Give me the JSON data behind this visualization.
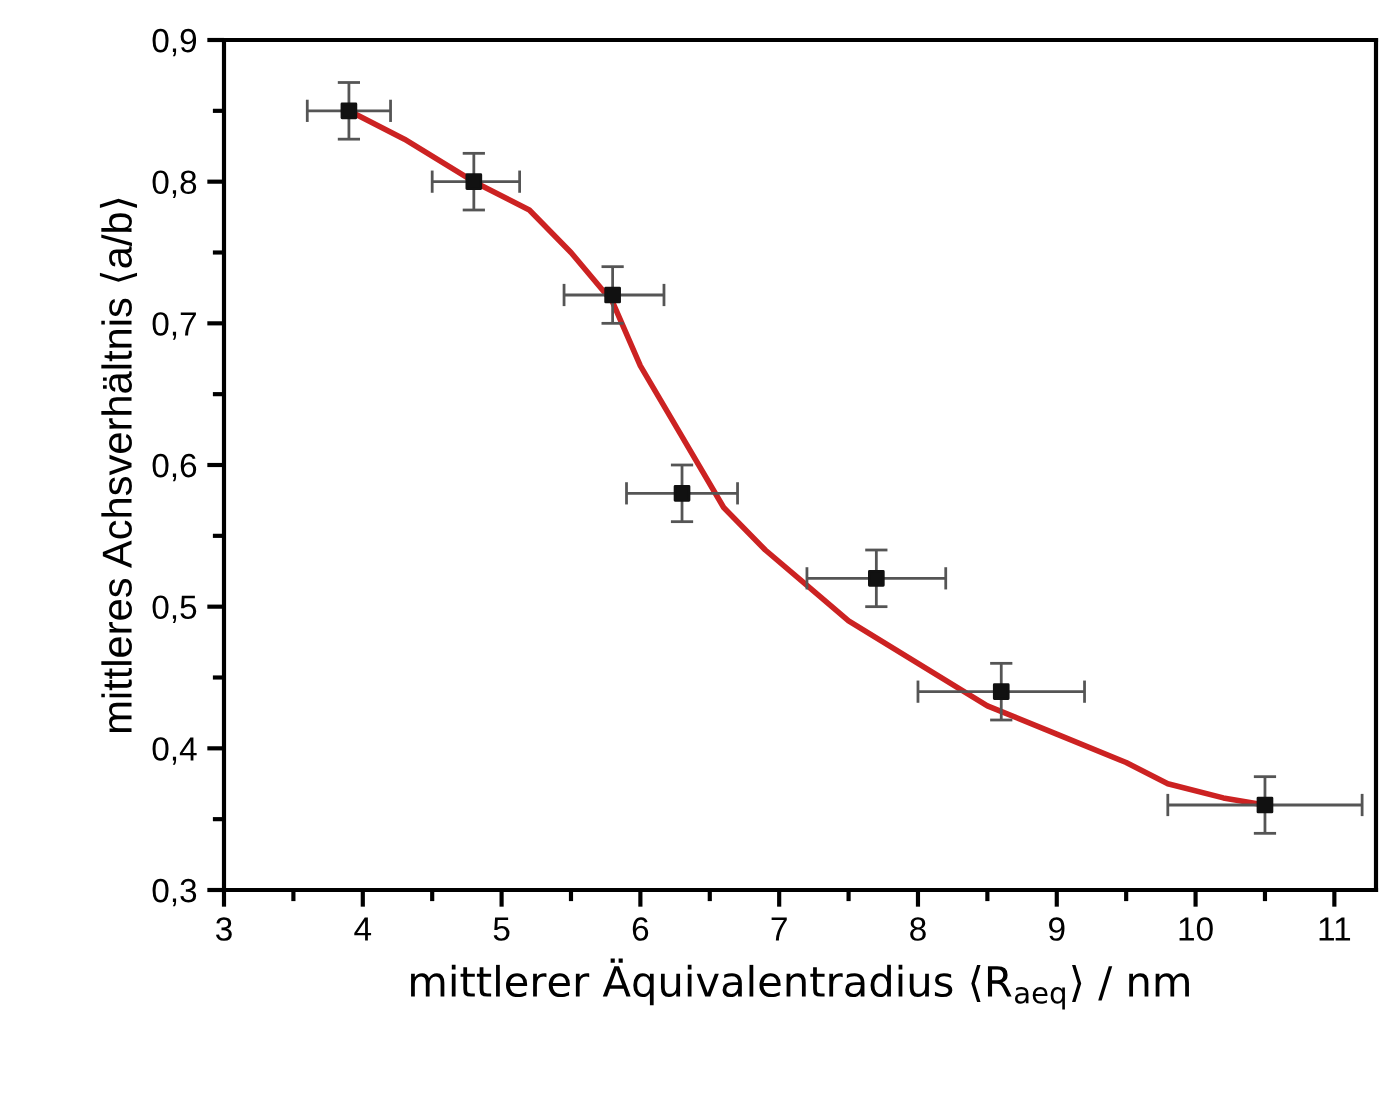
{
  "chart_data": {
    "type": "scatter",
    "xlabel": "mittlerer Äquivalentradius ⟨R$_{aeq}$⟩ / nm",
    "ylabel": "mittleres Achsverhältnis ⟨a/b⟩",
    "xlim": [
      3,
      11.3
    ],
    "xticks": [
      3,
      4,
      5,
      6,
      7,
      8,
      9,
      10,
      11
    ],
    "ylim": [
      0.3,
      0.9
    ],
    "yticks": [
      {
        "value": 0.3,
        "label": "0,3"
      },
      {
        "value": 0.4,
        "label": "0,4"
      },
      {
        "value": 0.5,
        "label": "0,5"
      },
      {
        "value": 0.6,
        "label": "0,6"
      },
      {
        "value": 0.7,
        "label": "0,7"
      },
      {
        "value": 0.8,
        "label": "0,8"
      },
      {
        "value": 0.9,
        "label": "0,9"
      }
    ],
    "grid": false,
    "legend": false,
    "series": [
      {
        "type": "line",
        "color": "#cc2222",
        "marker": "none",
        "line_style": "solid",
        "x": [
          3.9,
          4.3,
          4.8,
          5.2,
          5.5,
          5.8,
          6.0,
          6.3,
          6.6,
          6.9,
          7.2,
          7.5,
          8.0,
          8.5,
          9.0,
          9.5,
          9.8,
          10.2,
          10.5
        ],
        "values": [
          0.85,
          0.83,
          0.8,
          0.78,
          0.75,
          0.715,
          0.67,
          0.62,
          0.57,
          0.54,
          0.515,
          0.49,
          0.46,
          0.43,
          0.41,
          0.39,
          0.375,
          0.365,
          0.36
        ]
      },
      {
        "type": "scatter",
        "color": "#111111",
        "marker": "square",
        "x": [
          3.9,
          4.8,
          5.8,
          6.3,
          7.7,
          8.6,
          10.5
        ],
        "values": [
          0.85,
          0.8,
          0.72,
          0.58,
          0.52,
          0.44,
          0.36
        ],
        "errors": [
          0.02,
          0.02,
          0.02,
          0.02,
          0.02,
          0.02,
          0.02
        ],
        "xerrors": [
          [
            3.6,
            4.2
          ],
          [
            4.5,
            5.13
          ],
          [
            5.45,
            6.17
          ],
          [
            5.9,
            6.7
          ],
          [
            7.2,
            8.2
          ],
          [
            8.0,
            9.2
          ],
          [
            9.8,
            11.2
          ]
        ]
      }
    ]
  }
}
